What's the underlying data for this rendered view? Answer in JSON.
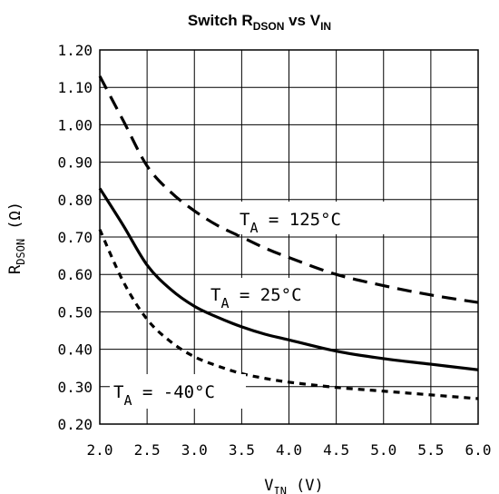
{
  "chart_data": {
    "type": "line",
    "title": {
      "main": "Switch R",
      "sub1": "DSON",
      "mid": " vs V",
      "sub2": "IN"
    },
    "xlabel": {
      "main": "V",
      "sub": "IN",
      "unit": "(V)"
    },
    "ylabel": {
      "main": "R",
      "sub": "DSON",
      "unit": "(Ω)"
    },
    "xlim": [
      2.0,
      6.0
    ],
    "ylim": [
      0.2,
      1.2
    ],
    "xticks": [
      "2.0",
      "2.5",
      "3.0",
      "3.5",
      "4.0",
      "4.5",
      "5.0",
      "5.5",
      "6.0"
    ],
    "yticks": [
      "1.20",
      "1.10",
      "1.00",
      "0.90",
      "0.80",
      "0.70",
      "0.60",
      "0.50",
      "0.40",
      "0.30",
      "0.20"
    ],
    "grid": true,
    "series": [
      {
        "name": "T_A = 125°C",
        "label": {
          "pre": "T",
          "sub": "A",
          "post": " = 125°C"
        },
        "style": "long-dash",
        "x": [
          2.0,
          2.25,
          2.5,
          2.75,
          3.0,
          3.25,
          3.5,
          3.75,
          4.0,
          4.5,
          5.0,
          5.5,
          6.0
        ],
        "y": [
          1.13,
          1.01,
          0.89,
          0.82,
          0.77,
          0.73,
          0.7,
          0.67,
          0.645,
          0.6,
          0.57,
          0.545,
          0.525
        ]
      },
      {
        "name": "T_A = 25°C",
        "label": {
          "pre": "T",
          "sub": "A",
          "post": " = 25°C"
        },
        "style": "solid",
        "x": [
          2.0,
          2.25,
          2.5,
          2.75,
          3.0,
          3.25,
          3.5,
          3.75,
          4.0,
          4.5,
          5.0,
          5.5,
          6.0
        ],
        "y": [
          0.83,
          0.73,
          0.625,
          0.56,
          0.515,
          0.485,
          0.46,
          0.44,
          0.425,
          0.395,
          0.375,
          0.36,
          0.345
        ]
      },
      {
        "name": "T_A = -40°C",
        "label": {
          "pre": "T",
          "sub": "A",
          "post": " = -40°C"
        },
        "style": "short-dash",
        "x": [
          2.0,
          2.25,
          2.5,
          2.75,
          3.0,
          3.25,
          3.5,
          3.75,
          4.0,
          4.5,
          5.0,
          5.5,
          6.0
        ],
        "y": [
          0.72,
          0.58,
          0.48,
          0.42,
          0.38,
          0.355,
          0.335,
          0.322,
          0.312,
          0.298,
          0.288,
          0.278,
          0.268
        ]
      }
    ]
  }
}
